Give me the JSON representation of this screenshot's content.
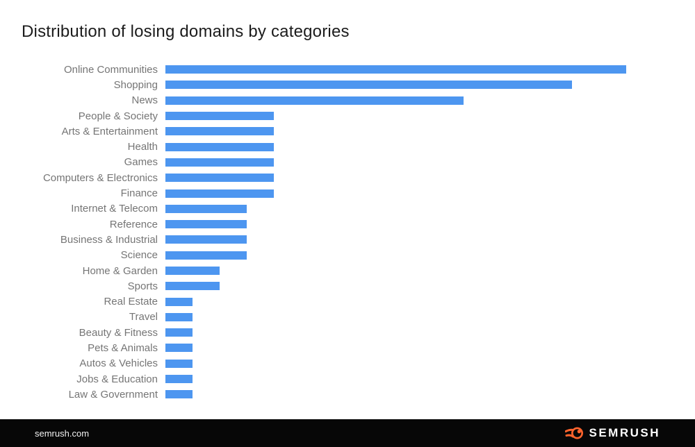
{
  "title": "Distribution of losing domains by categories",
  "footer": {
    "site": "semrush.com",
    "brand": "SEMRUSH"
  },
  "colors": {
    "bar_blue": "#4d96f0",
    "label_gray": "#757575",
    "title_color": "#1c1c1c",
    "footer_bg": "#070707",
    "footer_text": "#f2f2f2",
    "brand_orange": "#ff642d"
  },
  "chart_data": {
    "type": "bar",
    "orientation": "horizontal",
    "title": "Distribution of losing domains by categories",
    "categories": [
      "Online Communities",
      "Shopping",
      "News",
      "People & Society",
      "Arts & Entertainment",
      "Health",
      "Games",
      "Computers & Electronics",
      "Finance",
      "Internet & Telecom",
      "Reference",
      "Business & Industrial",
      "Science",
      "Home & Garden",
      "Sports",
      "Real Estate",
      "Travel",
      "Beauty & Fitness",
      "Pets & Animals",
      "Autos & Vehicles",
      "Jobs & Education",
      "Law & Government"
    ],
    "values": [
      17,
      15,
      11,
      4,
      4,
      4,
      4,
      4,
      4,
      3,
      3,
      3,
      3,
      2,
      2,
      1,
      1,
      1,
      1,
      1,
      1,
      1
    ],
    "xlabel": "",
    "ylabel": "",
    "xlim": [
      0,
      17.5
    ],
    "grid": false,
    "legend": "none",
    "axis_tick_labels_shown": false,
    "note": "no axis or data labels are visible; values are relative units estimated from bar lengths (shortest bar = 1)"
  }
}
